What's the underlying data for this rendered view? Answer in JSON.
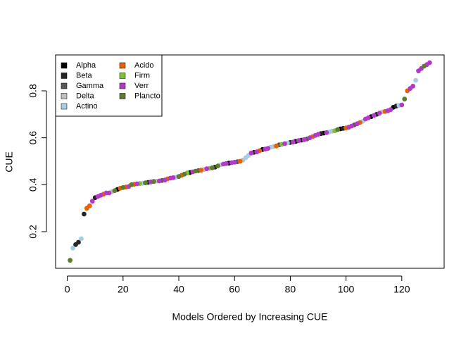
{
  "chart_data": {
    "type": "scatter",
    "xlabel": "Models Ordered by Increasing CUE",
    "ylabel": "CUE",
    "xlim": [
      -4.2,
      135.2
    ],
    "ylim": [
      0.044,
      0.953
    ],
    "xticks": [
      0,
      20,
      40,
      60,
      80,
      100,
      120
    ],
    "yticks": [
      0.2,
      0.4,
      0.6,
      0.8
    ],
    "legend": "top-left",
    "series": [
      {
        "name": "Alpha",
        "color": "#000000",
        "x": [
          18,
          44,
          58,
          70,
          82,
          92,
          98,
          109,
          117
        ],
        "values": [
          0.38,
          0.452,
          0.492,
          0.55,
          0.585,
          0.62,
          0.638,
          0.69,
          0.73
        ]
      },
      {
        "name": "Beta",
        "color": "#262626",
        "x": [
          3,
          4,
          6,
          10,
          29,
          53,
          67,
          80,
          84,
          91,
          99,
          111,
          118
        ],
        "values": [
          0.145,
          0.155,
          0.275,
          0.345,
          0.41,
          0.475,
          0.538,
          0.58,
          0.59,
          0.618,
          0.64,
          0.7,
          0.735
        ]
      },
      {
        "name": "Gamma",
        "color": "#595959",
        "x": [
          34,
          47,
          61,
          76,
          86,
          103
        ],
        "values": [
          0.418,
          0.46,
          0.498,
          0.57,
          0.595,
          0.655
        ]
      },
      {
        "name": "Delta",
        "color": "#bfbfbf",
        "x": [
          16,
          32,
          49,
          63,
          74,
          95,
          113
        ],
        "values": [
          0.37,
          0.415,
          0.465,
          0.505,
          0.562,
          0.628,
          0.71
        ]
      },
      {
        "name": "Actino",
        "color": "#a6cee3",
        "x": [
          2,
          5,
          27,
          39,
          55,
          64,
          65,
          73,
          79,
          94,
          106,
          119,
          125
        ],
        "values": [
          0.13,
          0.17,
          0.406,
          0.432,
          0.485,
          0.515,
          0.525,
          0.56,
          0.578,
          0.625,
          0.67,
          0.738,
          0.845
        ]
      },
      {
        "name": "Acido",
        "color": "#e66101",
        "x": [
          7,
          8,
          13,
          19,
          21,
          24,
          36,
          41,
          48,
          62,
          69,
          75,
          88,
          100,
          105,
          114,
          122
        ],
        "values": [
          0.3,
          0.31,
          0.36,
          0.385,
          0.39,
          0.402,
          0.425,
          0.44,
          0.462,
          0.5,
          0.545,
          0.565,
          0.605,
          0.642,
          0.665,
          0.712,
          0.8
        ]
      },
      {
        "name": "Firm",
        "color": "#7fbf3f",
        "x": [
          26,
          43,
          51,
          77,
          96
        ],
        "values": [
          0.405,
          0.45,
          0.47,
          0.572,
          0.63
        ]
      },
      {
        "name": "Verr",
        "color": "#b23ac6",
        "x": [
          9,
          11,
          12,
          14,
          15,
          22,
          25,
          30,
          33,
          35,
          37,
          38,
          45,
          50,
          56,
          57,
          59,
          60,
          66,
          68,
          71,
          72,
          78,
          81,
          83,
          85,
          87,
          89,
          90,
          93,
          101,
          102,
          104,
          107,
          108,
          110,
          112,
          115,
          116,
          120,
          123,
          124,
          126,
          127,
          129,
          130
        ],
        "values": [
          0.33,
          0.35,
          0.355,
          0.365,
          0.365,
          0.392,
          0.404,
          0.412,
          0.416,
          0.42,
          0.428,
          0.43,
          0.455,
          0.468,
          0.488,
          0.49,
          0.494,
          0.496,
          0.535,
          0.54,
          0.552,
          0.555,
          0.575,
          0.582,
          0.588,
          0.592,
          0.6,
          0.61,
          0.615,
          0.622,
          0.645,
          0.65,
          0.66,
          0.68,
          0.685,
          0.695,
          0.705,
          0.715,
          0.72,
          0.74,
          0.81,
          0.82,
          0.885,
          0.895,
          0.912,
          0.92
        ]
      },
      {
        "name": "Plancto",
        "color": "#5e7b2e",
        "x": [
          1,
          17,
          20,
          23,
          28,
          31,
          40,
          42,
          46,
          52,
          54,
          97,
          121,
          128
        ],
        "values": [
          0.078,
          0.375,
          0.388,
          0.4,
          0.408,
          0.414,
          0.435,
          0.445,
          0.458,
          0.472,
          0.48,
          0.635,
          0.765,
          0.905
        ]
      }
    ]
  }
}
